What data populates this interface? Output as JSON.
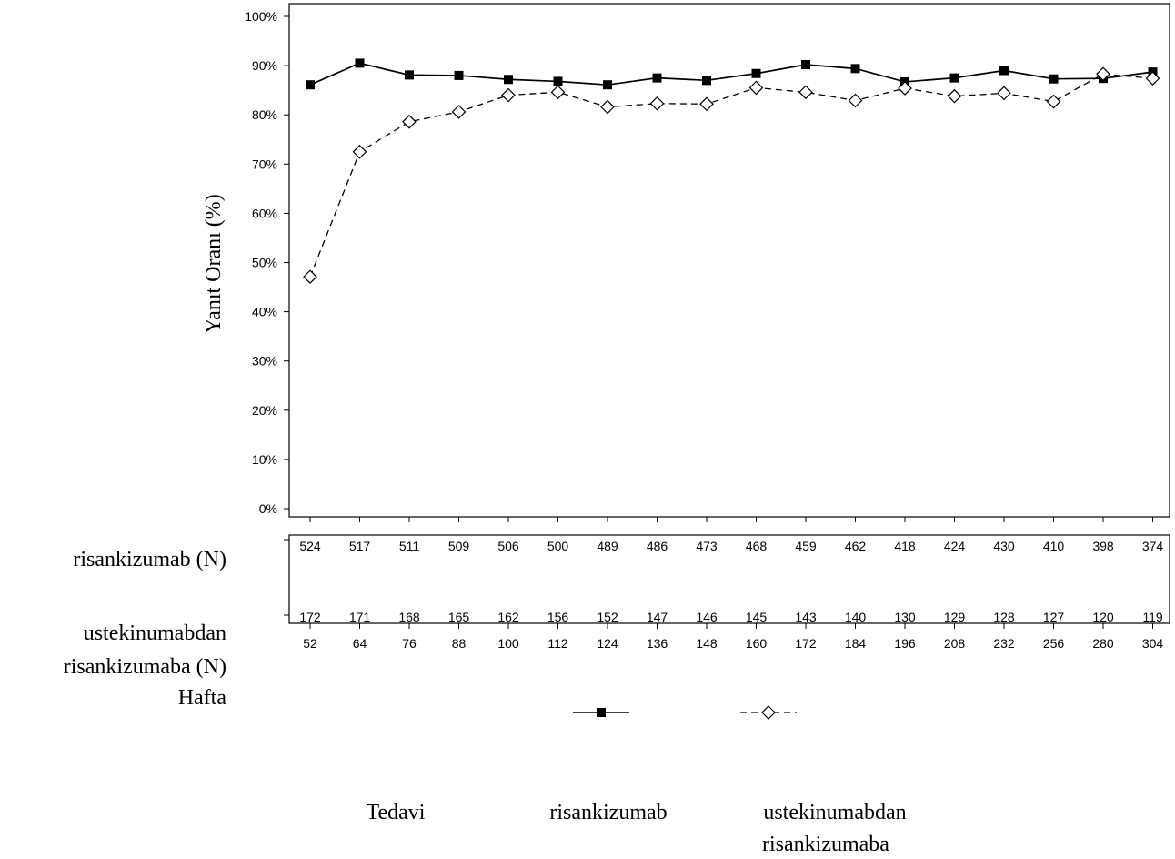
{
  "chart_data": {
    "type": "line",
    "ylabel": "Yanıt Oranı (%)",
    "xlabel": "Hafta",
    "ylim": [
      0,
      100
    ],
    "yticks": [
      "0%",
      "10%",
      "20%",
      "30%",
      "40%",
      "50%",
      "60%",
      "70%",
      "80%",
      "90%",
      "100%"
    ],
    "grid": false,
    "x": [
      52,
      64,
      76,
      88,
      100,
      112,
      124,
      136,
      148,
      160,
      172,
      184,
      196,
      208,
      232,
      256,
      280,
      304
    ],
    "series": [
      {
        "name": "risankizumab",
        "line": "solid",
        "marker": "filled-square",
        "values": [
          86.1,
          90.5,
          88.1,
          88.0,
          87.2,
          86.8,
          86.1,
          87.5,
          87.0,
          88.4,
          90.2,
          89.4,
          86.7,
          87.5,
          89.0,
          87.3,
          87.4,
          88.7
        ]
      },
      {
        "name": "ustekinumabdan risankizumaba",
        "line": "dashed",
        "marker": "open-diamond",
        "values": [
          47.1,
          72.5,
          78.6,
          80.6,
          84.0,
          84.6,
          81.6,
          82.3,
          82.2,
          85.5,
          84.6,
          82.9,
          85.4,
          83.8,
          84.4,
          82.7,
          88.3,
          87.4
        ]
      }
    ],
    "risk_table": {
      "rows": [
        {
          "label": "risankizumab (N)",
          "values": [
            "524",
            "517",
            "511",
            "509",
            "506",
            "500",
            "489",
            "486",
            "473",
            "468",
            "459",
            "462",
            "418",
            "424",
            "430",
            "410",
            "398",
            "374"
          ]
        },
        {
          "label": "ustekinumabdan risankizumaba (N)",
          "values": [
            "172",
            "171",
            "168",
            "165",
            "162",
            "156",
            "152",
            "147",
            "146",
            "145",
            "143",
            "140",
            "130",
            "129",
            "128",
            "127",
            "120",
            "119"
          ]
        }
      ]
    },
    "legend": {
      "position": "bottom",
      "title": "Tedavi",
      "entries": [
        "risankizumab",
        "ustekinumabdan risankizumaba"
      ]
    }
  }
}
